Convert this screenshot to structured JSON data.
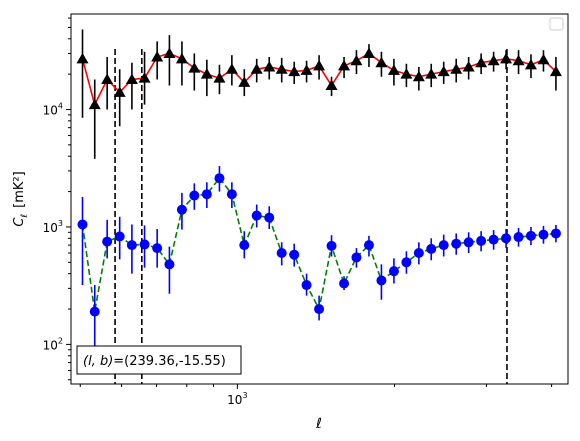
{
  "chart_data": {
    "type": "scatter",
    "title": "",
    "xlabel": "ℓ",
    "ylabel_main": "C",
    "ylabel_sub": "ℓ",
    "ylabel_unit": "[mK²]",
    "xscale": "log",
    "yscale": "log",
    "xlim": [
      480,
      4300
    ],
    "ylim": [
      46,
      65000
    ],
    "x_ticks": [
      {
        "value": 1000,
        "base": "10",
        "exp": "3"
      }
    ],
    "y_ticks": [
      {
        "value": 100,
        "base": "10",
        "exp": "2"
      },
      {
        "value": 1000,
        "base": "10",
        "exp": "3"
      },
      {
        "value": 10000,
        "base": "10",
        "exp": "4"
      }
    ],
    "grid": false,
    "legend": {
      "placement": "top-right",
      "entries": []
    },
    "vlines": [
      583,
      656,
      3285
    ],
    "annotation": {
      "text": "(l, b)=(239.36,-15.55)",
      "lb": "(l, b)",
      "rest": "=(239.36,-15.55)"
    },
    "series": [
      {
        "color": "#ff0000",
        "marker_color": "#000000",
        "error_color": "#000000",
        "marker": "triangle",
        "line_style": "solid",
        "x": [
          505,
          533,
          563,
          595,
          628,
          664,
          702,
          741,
          783,
          827,
          874,
          924,
          976,
          1031,
          1089,
          1151,
          1216,
          1285,
          1357,
          1434,
          1515,
          1601,
          1691,
          1787,
          1888,
          1995,
          2108,
          2227,
          2352,
          2485,
          2626,
          2774,
          2931,
          3097,
          3272,
          3457,
          3652,
          3859,
          4077
        ],
        "y": [
          27000,
          11000,
          18000,
          14000,
          18000,
          18500,
          28000,
          30000,
          27000,
          22500,
          20000,
          18500,
          22000,
          17000,
          22000,
          23000,
          22000,
          21000,
          21500,
          23500,
          16000,
          23500,
          26000,
          30000,
          25000,
          21500,
          20000,
          19000,
          20000,
          21000,
          22000,
          23000,
          25000,
          26000,
          27000,
          26000,
          24000,
          26500,
          21000
        ],
        "err_low": [
          8500,
          3800,
          10000,
          7200,
          10000,
          11000,
          18000,
          16000,
          16000,
          14500,
          13000,
          13500,
          16000,
          13000,
          17000,
          18000,
          17000,
          16500,
          17000,
          18000,
          13000,
          18500,
          20000,
          23000,
          19000,
          16000,
          15500,
          14500,
          15500,
          16500,
          17000,
          18000,
          20000,
          21000,
          22000,
          20000,
          18500,
          21000,
          14500
        ],
        "err_high": [
          48000,
          18000,
          28000,
          22000,
          25000,
          31000,
          38000,
          43000,
          38000,
          30000,
          26500,
          24000,
          29000,
          22000,
          27000,
          28000,
          27500,
          25500,
          26000,
          29000,
          19000,
          28000,
          32000,
          36000,
          31000,
          27000,
          24500,
          23000,
          24500,
          25500,
          27000,
          28000,
          30000,
          31000,
          32000,
          32000,
          29500,
          32000,
          28000
        ]
      },
      {
        "color": "#008000",
        "marker_color": "#0000ff",
        "error_color": "#0000ff",
        "marker": "circle",
        "line_style": "dashed",
        "x": [
          505,
          533,
          563,
          595,
          628,
          664,
          702,
          741,
          783,
          827,
          874,
          924,
          976,
          1031,
          1089,
          1151,
          1216,
          1285,
          1357,
          1434,
          1515,
          1601,
          1691,
          1787,
          1888,
          1995,
          2108,
          2227,
          2352,
          2485,
          2626,
          2774,
          2931,
          3097,
          3272,
          3457,
          3652,
          3859,
          4077
        ],
        "y": [
          1050,
          190,
          750,
          830,
          700,
          710,
          660,
          480,
          1400,
          1850,
          1900,
          2600,
          1900,
          700,
          1250,
          1200,
          600,
          580,
          320,
          200,
          690,
          330,
          550,
          700,
          350,
          420,
          500,
          600,
          650,
          700,
          720,
          740,
          760,
          780,
          800,
          820,
          840,
          860,
          880
        ],
        "err_low": [
          320,
          95,
          540,
          530,
          400,
          450,
          450,
          270,
          950,
          1400,
          1450,
          2000,
          1450,
          540,
          990,
          960,
          470,
          460,
          260,
          160,
          560,
          290,
          450,
          560,
          240,
          330,
          400,
          480,
          520,
          560,
          580,
          600,
          620,
          640,
          660,
          680,
          700,
          720,
          740
        ],
        "err_high": [
          1800,
          320,
          1150,
          1220,
          1050,
          1030,
          960,
          680,
          1950,
          2350,
          2400,
          3300,
          2400,
          920,
          1550,
          1500,
          740,
          720,
          400,
          260,
          850,
          380,
          660,
          840,
          480,
          540,
          620,
          740,
          800,
          860,
          880,
          900,
          920,
          940,
          960,
          980,
          1000,
          1020,
          1040
        ]
      }
    ]
  }
}
